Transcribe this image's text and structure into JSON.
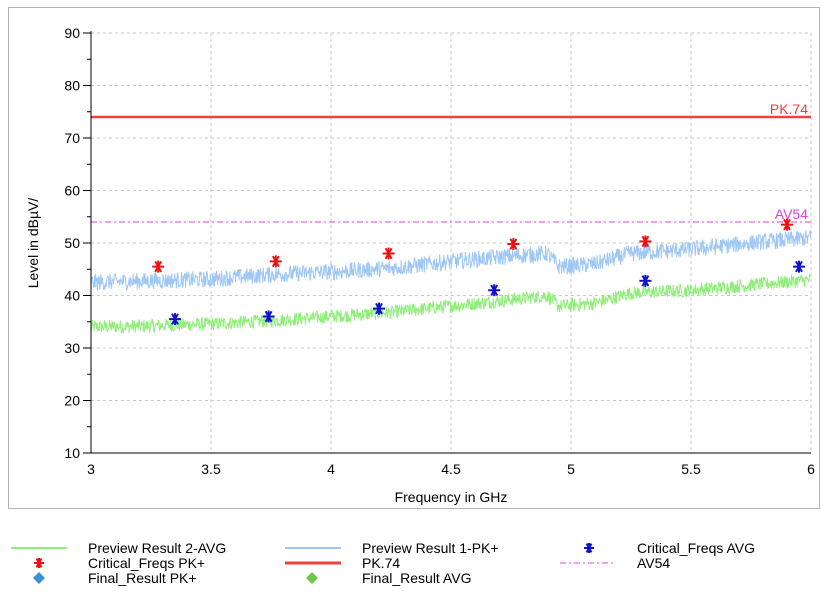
{
  "chart_data": {
    "type": "line",
    "xlabel": "Frequency in GHz",
    "ylabel": "Level in dBµV/",
    "xlim": [
      3,
      6
    ],
    "ylim": [
      10,
      90
    ],
    "x_ticks": [
      "3",
      "3.5",
      "4",
      "4.5",
      "5",
      "5.5",
      "6"
    ],
    "y_ticks": [
      "10",
      "20",
      "30",
      "40",
      "50",
      "60",
      "70",
      "80",
      "90"
    ],
    "grid": true,
    "series": [
      {
        "name": "Preview Result 2-AVG",
        "color": "#90ee7a",
        "x": [
          3.0,
          3.25,
          3.5,
          3.75,
          4.0,
          4.25,
          4.5,
          4.75,
          4.9,
          4.95,
          5.1,
          5.25,
          5.5,
          5.75,
          6.0
        ],
        "y": [
          34,
          34.2,
          34.6,
          35.2,
          36,
          36.8,
          38,
          39.2,
          40,
          38,
          38.5,
          40.5,
          41,
          42,
          43
        ]
      },
      {
        "name": "Preview Result 1-PK+",
        "color": "#9ec7f5",
        "x": [
          3.0,
          3.25,
          3.5,
          3.75,
          4.0,
          4.25,
          4.5,
          4.75,
          4.9,
          4.95,
          5.1,
          5.25,
          5.5,
          5.75,
          6.0
        ],
        "y": [
          42.5,
          42.8,
          43.1,
          44,
          44.5,
          45.2,
          46.5,
          47.5,
          48,
          45.5,
          46,
          48,
          48.8,
          50,
          51
        ]
      },
      {
        "name": "PK.74",
        "color": "#ee4040",
        "limit": 74,
        "label": "PK.74"
      },
      {
        "name": "AV54",
        "color": "#e040e0",
        "limit": 54,
        "label": "AV54"
      },
      {
        "name": "Critical_Freqs PK+",
        "color": "#ee1111",
        "marker": "star",
        "x": [
          3.28,
          3.77,
          4.24,
          4.76,
          5.31,
          5.9
        ],
        "y": [
          45.5,
          46.5,
          48,
          49.8,
          50.3,
          53.5
        ]
      },
      {
        "name": "Critical_Freqs AVG",
        "color": "#1111cc",
        "marker": "star",
        "x": [
          3.35,
          3.74,
          4.2,
          4.68,
          5.31,
          5.95
        ],
        "y": [
          35.5,
          36,
          37.5,
          41,
          42.8,
          45.5
        ]
      },
      {
        "name": "Final_Result PK+",
        "color": "#3a8fd8",
        "marker": "diamond",
        "x": [],
        "y": []
      },
      {
        "name": "Final_Result AVG",
        "color": "#6ac84a",
        "marker": "diamond",
        "x": [],
        "y": []
      }
    ]
  },
  "legend": {
    "items": [
      {
        "label": "Preview Result 2-AVG",
        "swatch": "line",
        "color": "#90ee7a"
      },
      {
        "label": "Critical_Freqs PK+",
        "swatch": "star",
        "color": "#ee1111"
      },
      {
        "label": "Final_Result PK+",
        "swatch": "diamond",
        "color": "#3a8fd8"
      },
      {
        "label": "Preview Result 1-PK+",
        "swatch": "line",
        "color": "#9ec7f5"
      },
      {
        "label": "PK.74",
        "swatch": "thick-line",
        "color": "#ee4040"
      },
      {
        "label": "Final_Result AVG",
        "swatch": "diamond",
        "color": "#6ac84a"
      },
      {
        "label": "Critical_Freqs AVG",
        "swatch": "star",
        "color": "#1111cc"
      },
      {
        "label": "AV54",
        "swatch": "dash-line",
        "color": "#e040e0"
      }
    ]
  }
}
